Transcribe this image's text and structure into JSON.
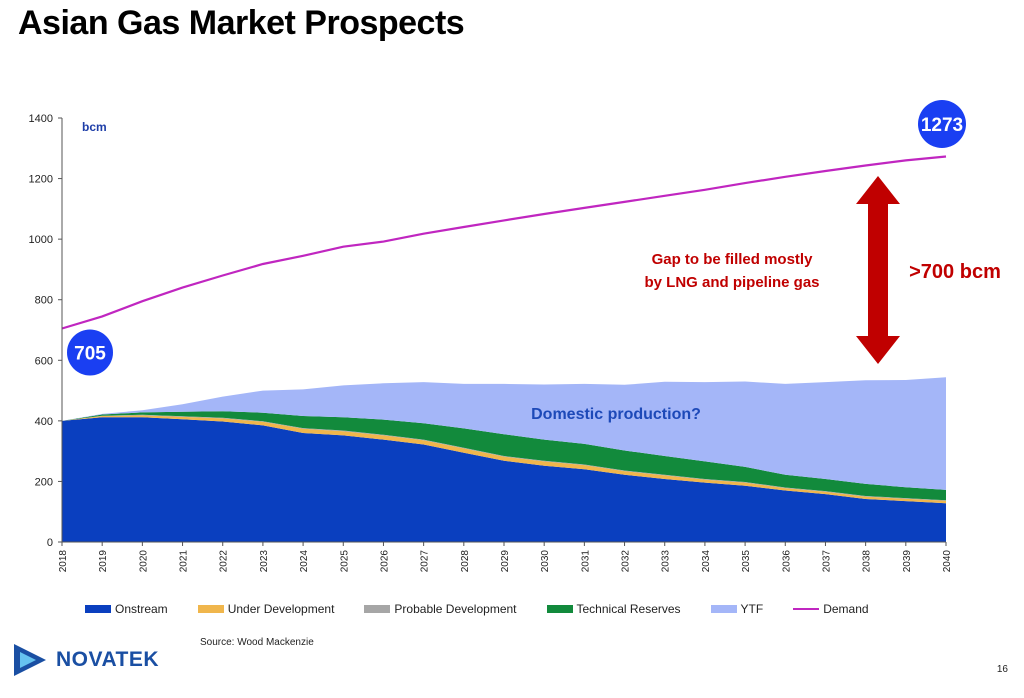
{
  "slide": {
    "title": "Asian Gas Market Prospects",
    "source": "Source: Wood Mackenzie",
    "logo_text": "NOVATEK",
    "page_number": "16"
  },
  "chart_data": {
    "type": "area",
    "ylabel": "bcm",
    "ylim": [
      0,
      1400
    ],
    "yticks": [
      0,
      200,
      400,
      600,
      800,
      1000,
      1200,
      1400
    ],
    "categories": [
      "2018",
      "2019",
      "2020",
      "2021",
      "2022",
      "2023",
      "2024",
      "2025",
      "2026",
      "2027",
      "2028",
      "2029",
      "2030",
      "2031",
      "2032",
      "2033",
      "2034",
      "2035",
      "2036",
      "2037",
      "2038",
      "2039",
      "2040"
    ],
    "stacked_series": [
      {
        "name": "Onstream",
        "color": "#0a3fbf",
        "values": [
          400,
          412,
          412,
          405,
          398,
          385,
          360,
          352,
          338,
          322,
          295,
          268,
          252,
          240,
          222,
          208,
          196,
          186,
          170,
          158,
          142,
          135,
          128
        ]
      },
      {
        "name": "Under Development",
        "color": "#f0b64c",
        "values": [
          0,
          4,
          6,
          8,
          10,
          12,
          14,
          14,
          14,
          14,
          14,
          14,
          14,
          14,
          12,
          12,
          10,
          10,
          8,
          8,
          8,
          8,
          8
        ]
      },
      {
        "name": "Probable Development",
        "color": "#a6a6a6",
        "values": [
          0,
          1,
          2,
          2,
          2,
          2,
          2,
          2,
          2,
          2,
          2,
          2,
          2,
          2,
          2,
          2,
          2,
          2,
          2,
          2,
          2,
          2,
          2
        ]
      },
      {
        "name": "Technical Reserves",
        "color": "#128a3c",
        "values": [
          0,
          4,
          8,
          15,
          22,
          28,
          40,
          44,
          50,
          54,
          64,
          72,
          70,
          68,
          66,
          62,
          58,
          50,
          42,
          40,
          40,
          36,
          34
        ]
      },
      {
        "name": "YTF",
        "color": "#a4b6f8",
        "values": [
          0,
          2,
          7,
          25,
          48,
          73,
          88,
          105,
          120,
          136,
          147,
          166,
          182,
          198,
          217,
          245,
          262,
          282,
          300,
          320,
          342,
          354,
          372
        ]
      }
    ],
    "demand": {
      "name": "Demand",
      "color": "#c026c0",
      "values": [
        705,
        745,
        795,
        840,
        880,
        918,
        945,
        975,
        992,
        1018,
        1040,
        1062,
        1083,
        1103,
        1123,
        1143,
        1163,
        1185,
        1206,
        1225,
        1243,
        1260,
        1273
      ]
    },
    "annotations": {
      "start_value": "705",
      "end_value": "1273",
      "domestic": "Domestic production?",
      "gap_line1": "Gap to be filled mostly",
      "gap_line2": "by LNG and pipeline gas",
      "gap_amount": ">700 bcm"
    },
    "colors": {
      "bubble": "#1a3ff2",
      "arrow": "#c00000"
    }
  },
  "legend": [
    {
      "label": "Onstream",
      "color": "#0a3fbf",
      "kind": "box"
    },
    {
      "label": "Under Development",
      "color": "#f0b64c",
      "kind": "box"
    },
    {
      "label": "Probable Development",
      "color": "#a6a6a6",
      "kind": "box"
    },
    {
      "label": "Technical Reserves",
      "color": "#128a3c",
      "kind": "box"
    },
    {
      "label": "YTF",
      "color": "#a4b6f8",
      "kind": "box"
    },
    {
      "label": "Demand",
      "color": "#c026c0",
      "kind": "line"
    }
  ]
}
